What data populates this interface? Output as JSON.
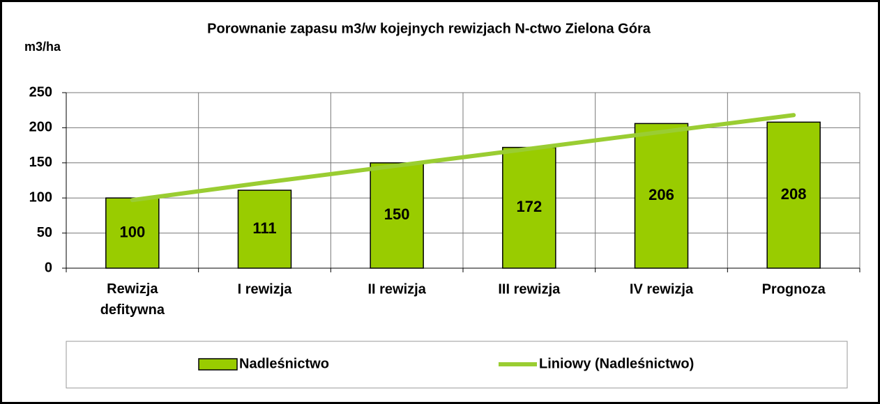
{
  "chart_data": {
    "type": "bar",
    "title": "Porownanie zapasu m3/w kojejnych rewizjach N-ctwo Zielona Góra",
    "y_label": "m3/ha",
    "categories": [
      "Rewizja defitywna",
      "I rewizja",
      "II rewizja",
      "III rewizja",
      "IV rewizja",
      "Prognoza"
    ],
    "series": [
      {
        "name": "Nadleśnictwo",
        "color": "#99cc00",
        "values": [
          100,
          111,
          150,
          172,
          206,
          208
        ]
      },
      {
        "name": "Liniowy (Nadleśnictwo)",
        "color": "#9acd32",
        "type": "line",
        "values": [
          97,
          122,
          146,
          170,
          194,
          218
        ]
      }
    ],
    "ylim": [
      0,
      250
    ],
    "yticks": [
      0,
      50,
      100,
      150,
      200,
      250
    ],
    "grid": true,
    "legend": "bottom"
  }
}
